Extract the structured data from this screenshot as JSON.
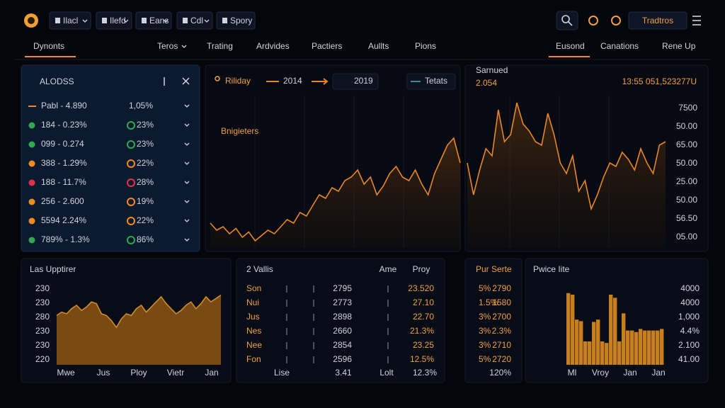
{
  "topbar": {
    "menus": [
      "Ilacl",
      "Ilefd",
      "Eans",
      "Cdl",
      "Spory"
    ],
    "action": "Tradtros"
  },
  "nav": {
    "left": [
      "Dynonts",
      "Teros",
      "Trating",
      "Ardvides",
      "Pactiers",
      "Aullts",
      "Pions"
    ],
    "right": [
      "Eusond",
      "Canations",
      "Rene Up"
    ]
  },
  "watchlist": {
    "title": "ALODSS",
    "rows": [
      {
        "name": "Pabl - 4.890",
        "change": "1,05%",
        "color": "#f08a24"
      },
      {
        "name": "184 - 0.23%",
        "change": "23%",
        "color": "#2fa84f"
      },
      {
        "name": "099 - 0.274",
        "change": "23%",
        "color": "#2fa84f"
      },
      {
        "name": "388 - 1.29%",
        "change": "22%",
        "color": "#f08a24"
      },
      {
        "name": "188 - 11.7%",
        "change": "28%",
        "color": "#e0324a"
      },
      {
        "name": "256 - 2.600",
        "change": "19%",
        "color": "#f08a24"
      },
      {
        "name": "5594 2.24%",
        "change": "22%",
        "color": "#f08a24"
      },
      {
        "name": "789% - 1.3%",
        "change": "86%",
        "color": "#2fa84f"
      }
    ]
  },
  "main_chart": {
    "type": "area",
    "legend": [
      "Riliday",
      "2014",
      "2019",
      "Tetats"
    ],
    "annotation": "Bnigieters",
    "color": "#e8862a",
    "ylim": [
      0,
      100
    ],
    "values": [
      14,
      10,
      12,
      8,
      11,
      6,
      9,
      4,
      7,
      10,
      8,
      12,
      16,
      14,
      20,
      18,
      24,
      30,
      28,
      34,
      32,
      38,
      40,
      44,
      36,
      40,
      30,
      35,
      42,
      46,
      40,
      38,
      44,
      36,
      30,
      42,
      50,
      58,
      62,
      48
    ]
  },
  "price_chart": {
    "type": "area",
    "label": "Sarnued",
    "value": "2.054",
    "price": "13:55 051,523277U",
    "color": "#e8862a",
    "ylim": [
      0,
      100
    ],
    "axis_labels": [
      "7500",
      "50.00",
      "65.00",
      "50.00",
      "25.00",
      "50.00",
      "56.50",
      "05.00"
    ],
    "values": [
      48,
      30,
      44,
      56,
      52,
      78,
      60,
      64,
      82,
      70,
      66,
      60,
      58,
      76,
      64,
      48,
      42,
      52,
      32,
      38,
      22,
      30,
      40,
      48,
      46,
      54,
      50,
      44,
      56,
      48,
      42,
      58,
      60
    ]
  },
  "history": {
    "type": "area",
    "title": "Las Upptirer",
    "color": "#d08a2a",
    "ylim": [
      0,
      100
    ],
    "axis_labels": [
      "230",
      "230",
      "280",
      "230",
      "230",
      "220"
    ],
    "x_labels": [
      "Mwe",
      "Jus",
      "Ploy",
      "Vietr",
      "Jan"
    ],
    "values": [
      58,
      62,
      60,
      66,
      70,
      64,
      68,
      74,
      72,
      60,
      58,
      52,
      44,
      54,
      60,
      58,
      66,
      70,
      62,
      68,
      74,
      80,
      72,
      66,
      60,
      64,
      70,
      74,
      66,
      72,
      80,
      74,
      78,
      82
    ]
  },
  "valuations": {
    "title": "2 Vallis",
    "tabs": [
      "Ame",
      "Proy"
    ],
    "rows": [
      [
        "Son",
        "2795",
        "23.520"
      ],
      [
        "Nui",
        "2773",
        "27.10"
      ],
      [
        "Jus",
        "2898",
        "22.70"
      ],
      [
        "Nes",
        "2660",
        "21.3%"
      ],
      [
        "Nee",
        "2854",
        "23.25"
      ],
      [
        "Fon",
        "2596",
        "12.5%"
      ]
    ],
    "footer": [
      "Lise",
      "3.41",
      "Lolt",
      "12.3%"
    ]
  },
  "per_series": {
    "title": "Pur Serte",
    "rows": [
      [
        "5%",
        "2790"
      ],
      [
        "1.5%",
        "1580"
      ],
      [
        "3%",
        "2700"
      ],
      [
        "3%",
        "2.3%"
      ],
      [
        "3%",
        "2710"
      ],
      [
        "5%",
        "2720"
      ]
    ],
    "footer": "120%"
  },
  "price_list": {
    "type": "bar",
    "title": "Pwice Iite",
    "color": "#c8801f",
    "ylim": [
      0,
      100
    ],
    "axis_labels": [
      "4000",
      "4000",
      "1,000",
      "4.4%",
      "2.100",
      "41.00"
    ],
    "x_labels": [
      "Ml",
      "Vroy",
      "Jan",
      "Jan"
    ],
    "values": [
      92,
      90,
      58,
      56,
      30,
      30,
      55,
      58,
      30,
      28,
      90,
      86,
      30,
      66,
      44,
      44,
      42,
      46,
      44,
      44,
      44,
      44,
      46
    ]
  }
}
